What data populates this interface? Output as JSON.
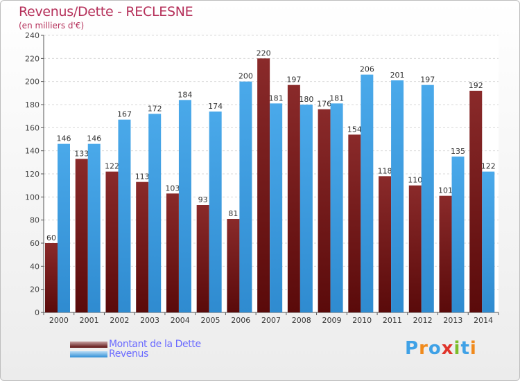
{
  "header": {
    "title": "Revenus/Dette - RECLESNE",
    "subtitle": "(en milliers d'€)"
  },
  "chart_data": {
    "type": "bar",
    "categories": [
      "2000",
      "2001",
      "2002",
      "2003",
      "2004",
      "2005",
      "2006",
      "2007",
      "2008",
      "2009",
      "2010",
      "2011",
      "2012",
      "2013",
      "2014"
    ],
    "series": [
      {
        "name": "Montant de la Dette",
        "values": [
          60,
          133,
          122,
          113,
          103,
          93,
          81,
          220,
          197,
          176,
          154,
          118,
          110,
          101,
          192
        ],
        "color": "#7a1a1a"
      },
      {
        "name": "Revenus",
        "values": [
          146,
          146,
          167,
          172,
          184,
          174,
          200,
          181,
          180,
          181,
          206,
          201,
          197,
          135,
          122
        ],
        "color": "#3fa1e6"
      }
    ],
    "ylim": [
      0,
      240
    ],
    "yticks": [
      0,
      20,
      40,
      60,
      80,
      100,
      120,
      140,
      160,
      180,
      200,
      220,
      240
    ],
    "grid": true,
    "legend_position": "bottom-left"
  },
  "logo": {
    "text": "Proxiti"
  },
  "colors": {
    "title": "#b5305a",
    "dette": "#7a1a1a",
    "revenus": "#3fa1e6",
    "legend_text": "#6b6bff"
  }
}
